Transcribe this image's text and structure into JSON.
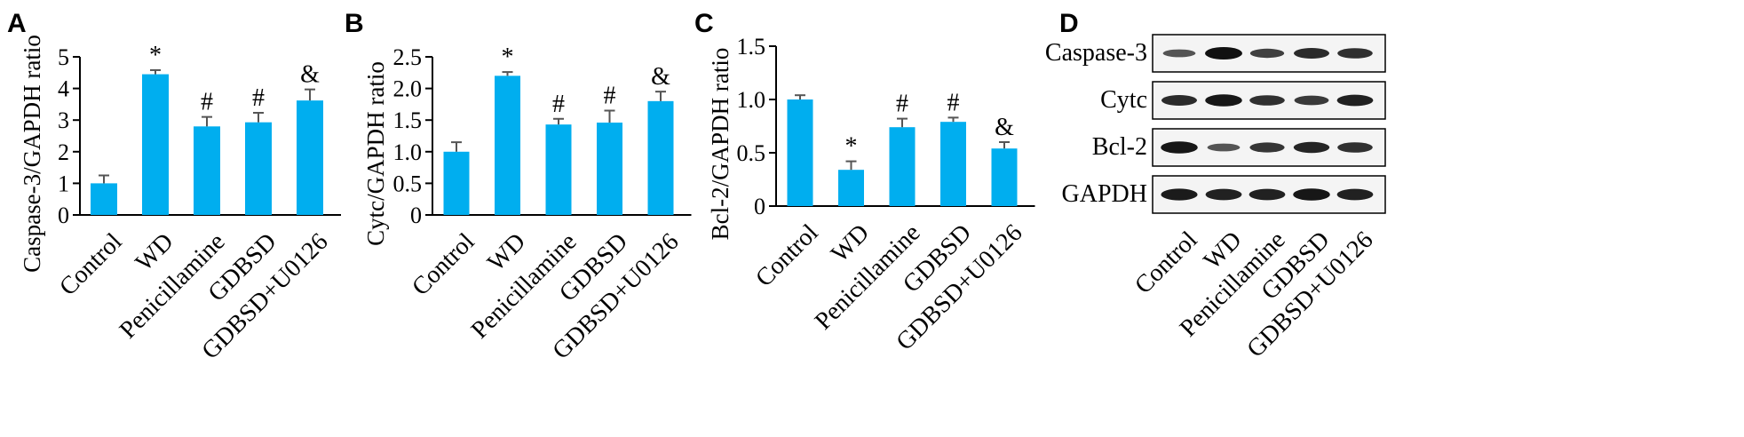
{
  "colors": {
    "bar": "#00AEEF",
    "error_bar": "#555555",
    "axis": "#000000",
    "blot_band": "#111111"
  },
  "chart_data": [
    {
      "panel": "A",
      "type": "bar",
      "categories": [
        "Control",
        "WD",
        "Penicillamine",
        "GDBSD",
        "GDBSD+U0126"
      ],
      "values": [
        1.0,
        4.45,
        2.8,
        2.93,
        3.62
      ],
      "errors": [
        0.25,
        0.13,
        0.3,
        0.3,
        0.35
      ],
      "significance": [
        "",
        "*",
        "#",
        "#",
        "&"
      ],
      "ylabel": "Caspase-3/GAPDH ratio",
      "ylim": [
        0,
        5
      ],
      "yticks": [
        "0",
        "1",
        "2",
        "3",
        "4",
        "5"
      ],
      "grid": false,
      "legend": "none"
    },
    {
      "panel": "B",
      "type": "bar",
      "categories": [
        "Control",
        "WD",
        "Penicillamine",
        "GDBSD",
        "GDBSD+U0126"
      ],
      "values": [
        1.0,
        2.2,
        1.43,
        1.46,
        1.8
      ],
      "errors": [
        0.15,
        0.06,
        0.09,
        0.19,
        0.15
      ],
      "significance": [
        "",
        "*",
        "#",
        "#",
        "&"
      ],
      "ylabel": "Cytc/GAPDH ratio",
      "ylim": [
        0,
        2.5
      ],
      "yticks": [
        "0",
        "0.5",
        "1.0",
        "1.5",
        "2.0",
        "2.5"
      ],
      "grid": false,
      "legend": "none"
    },
    {
      "panel": "C",
      "type": "bar",
      "categories": [
        "Control",
        "WD",
        "Penicillamine",
        "GDBSD",
        "GDBSD+U0126"
      ],
      "values": [
        1.0,
        0.34,
        0.74,
        0.79,
        0.54
      ],
      "errors": [
        0.04,
        0.08,
        0.08,
        0.04,
        0.06
      ],
      "significance": [
        "",
        "*",
        "#",
        "#",
        "&"
      ],
      "ylabel": "Bcl-2/GAPDH ratio",
      "ylim": [
        0,
        1.5
      ],
      "yticks": [
        "0",
        "0.5",
        "1.0",
        "1.5"
      ],
      "grid": false,
      "legend": "none"
    }
  ],
  "blot": {
    "panel": "D",
    "rows": [
      {
        "label": "Caspase-3",
        "intensity": [
          0.35,
          1.0,
          0.55,
          0.75,
          0.7
        ]
      },
      {
        "label": "Cytc",
        "intensity": [
          0.75,
          0.95,
          0.7,
          0.6,
          0.85
        ]
      },
      {
        "label": "Bcl-2",
        "intensity": [
          0.95,
          0.35,
          0.65,
          0.8,
          0.7
        ]
      },
      {
        "label": "GAPDH",
        "intensity": [
          0.9,
          0.85,
          0.85,
          0.95,
          0.85
        ]
      }
    ],
    "lanes": [
      "Control",
      "WD",
      "Penicillamine",
      "GDBSD",
      "GDBSD+U0126"
    ]
  }
}
